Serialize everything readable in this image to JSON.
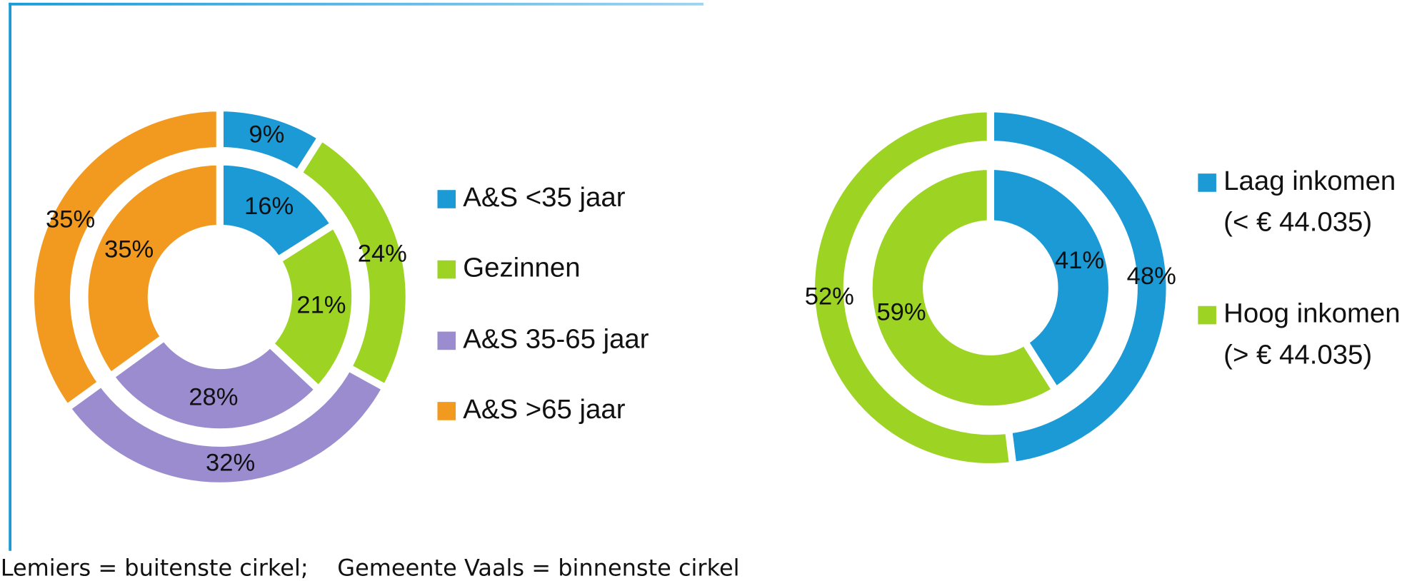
{
  "chart_data": [
    {
      "type": "donut",
      "categories": [
        "A&S <35 jaar",
        "Gezinnen",
        "A&S 35-65 jaar",
        "A&S >65 jaar"
      ],
      "colors": [
        "#1c9ad6",
        "#9dd323",
        "#9a8ccf",
        "#f29a1f"
      ],
      "series": [
        {
          "ring": "outer",
          "values": [
            9,
            24,
            32,
            35
          ],
          "value_labels": [
            "9%",
            "24%",
            "32%",
            "35%"
          ]
        },
        {
          "ring": "inner",
          "values": [
            16,
            21,
            28,
            35
          ],
          "value_labels": [
            "16%",
            "21%",
            "28%",
            "35%"
          ]
        }
      ]
    },
    {
      "type": "donut",
      "categories": [
        "Laag inkomen",
        "Hoog inkomen"
      ],
      "category_sublabels": [
        "(< € 44.035)",
        "(> € 44.035)"
      ],
      "colors": [
        "#1c9ad6",
        "#9dd323"
      ],
      "series": [
        {
          "ring": "outer",
          "values": [
            48,
            52
          ],
          "value_labels": [
            "48%",
            "52%"
          ]
        },
        {
          "ring": "inner",
          "values": [
            41,
            59
          ],
          "value_labels": [
            "41%",
            "59%"
          ]
        }
      ]
    }
  ],
  "footnote": "Lemiers = buitenste cirkel;    Gemeente Vaals = binnenste cirkel"
}
